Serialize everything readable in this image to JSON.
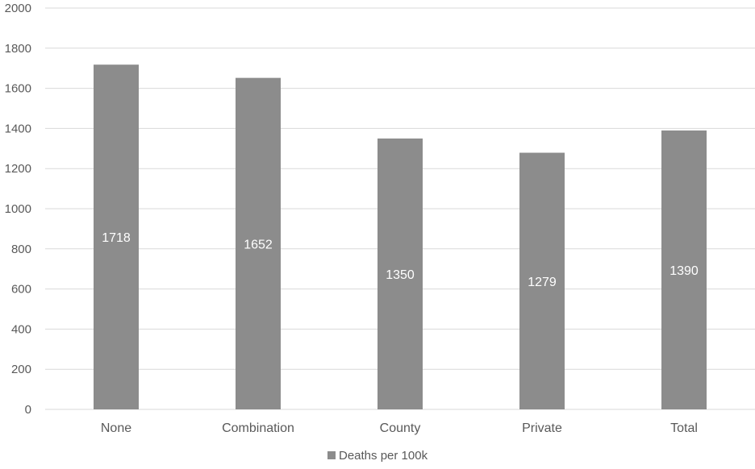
{
  "chart_data": {
    "type": "bar",
    "categories": [
      "None",
      "Combination",
      "County",
      "Private",
      "Total"
    ],
    "series": [
      {
        "name": "Deaths per 100k",
        "values": [
          1718,
          1652,
          1350,
          1279,
          1390
        ],
        "color": "#8c8c8c"
      }
    ],
    "ylim": [
      0,
      2000
    ],
    "yticks": [
      0,
      200,
      400,
      600,
      800,
      1000,
      1200,
      1400,
      1600,
      1800,
      2000
    ],
    "grid": true,
    "legend": "bottom-center",
    "data_labels": "inside-center",
    "data_label_color": "#ffffff",
    "gridline_color": "#d9d9d9",
    "text_color": "#595959"
  }
}
